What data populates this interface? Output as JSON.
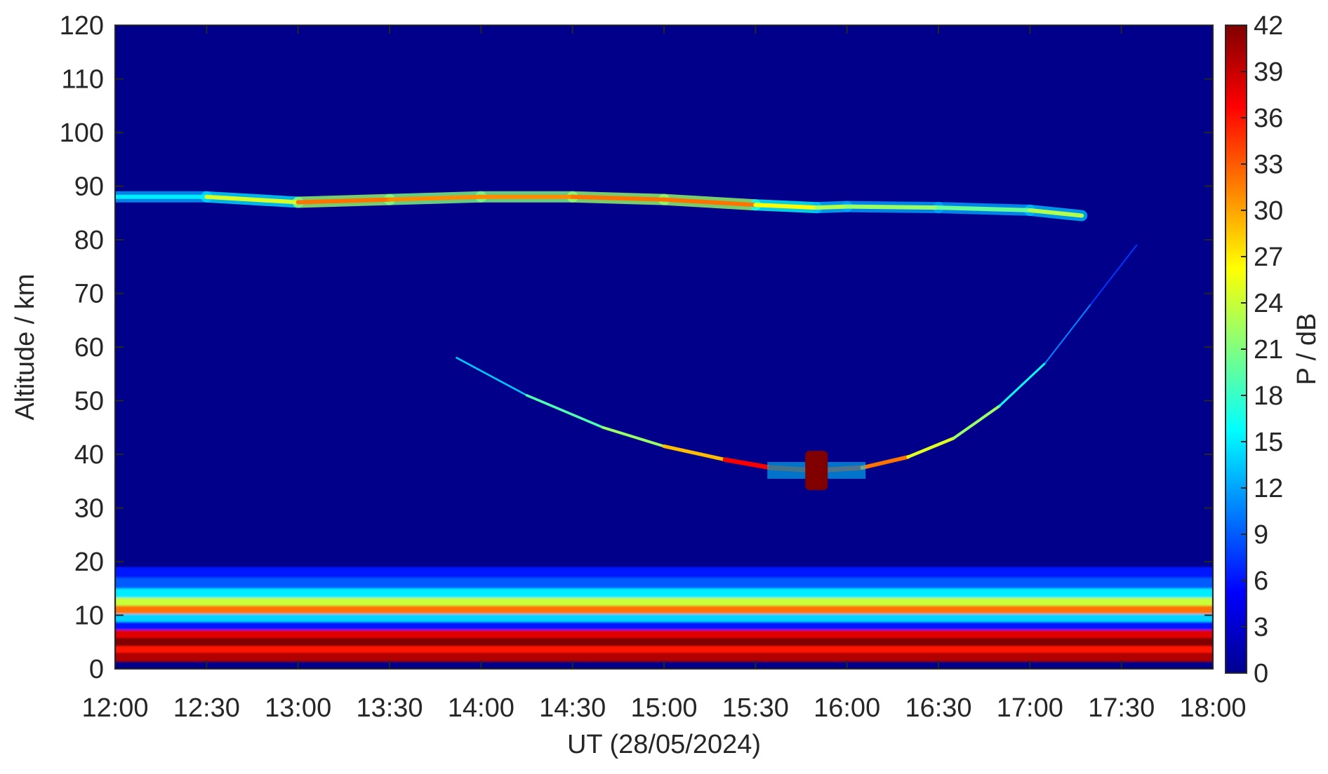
{
  "chart_data": {
    "type": "heatmap",
    "title": "",
    "xlabel": "UT (28/05/2024)",
    "ylabel": "Altitude / km",
    "colorbar_label": "P / dB",
    "colormap": "jet",
    "background_color": "#00008b",
    "x_ticks": [
      "12:00",
      "12:30",
      "13:00",
      "13:30",
      "14:00",
      "14:30",
      "15:00",
      "15:30",
      "16:00",
      "16:30",
      "17:00",
      "17:30",
      "18:00"
    ],
    "xlim": [
      "12:00",
      "18:00"
    ],
    "y_ticks": [
      0,
      10,
      20,
      30,
      40,
      50,
      60,
      70,
      80,
      90,
      100,
      110,
      120
    ],
    "ylim": [
      0,
      120
    ],
    "colorbar_ticks": [
      0,
      3,
      6,
      9,
      12,
      15,
      18,
      21,
      24,
      27,
      30,
      33,
      36,
      39,
      42
    ],
    "clim": [
      0,
      42
    ],
    "features": [
      {
        "name": "upper echo layer",
        "points": [
          {
            "x": "12:00",
            "y": 88,
            "p": 15
          },
          {
            "x": "12:30",
            "y": 88,
            "p": 15
          },
          {
            "x": "13:00",
            "y": 87,
            "p": 34
          },
          {
            "x": "13:30",
            "y": 87.5,
            "p": 30
          },
          {
            "x": "14:00",
            "y": 88,
            "p": 32
          },
          {
            "x": "14:30",
            "y": 88,
            "p": 30
          },
          {
            "x": "15:00",
            "y": 87.5,
            "p": 34
          },
          {
            "x": "15:30",
            "y": 86.5,
            "p": 30
          },
          {
            "x": "15:50",
            "y": 86,
            "p": 22
          },
          {
            "x": "16:00",
            "y": 86.2,
            "p": 24
          },
          {
            "x": "16:30",
            "y": 86,
            "p": 20
          },
          {
            "x": "17:00",
            "y": 85.5,
            "p": 20
          },
          {
            "x": "17:17",
            "y": 84.5,
            "p": 26
          }
        ]
      },
      {
        "name": "descending and ascending trace",
        "points": [
          {
            "x": "13:52",
            "y": 58,
            "p": 9
          },
          {
            "x": "14:15",
            "y": 51,
            "p": 18
          },
          {
            "x": "14:40",
            "y": 45,
            "p": 20
          },
          {
            "x": "15:00",
            "y": 41.5,
            "p": 24
          },
          {
            "x": "15:20",
            "y": 39,
            "p": 34
          },
          {
            "x": "15:35",
            "y": 37.5,
            "p": 40
          },
          {
            "x": "15:50",
            "y": 37,
            "p": 42
          },
          {
            "x": "16:05",
            "y": 37.5,
            "p": 38
          },
          {
            "x": "16:20",
            "y": 39.5,
            "p": 26
          },
          {
            "x": "16:35",
            "y": 43,
            "p": 24
          },
          {
            "x": "16:50",
            "y": 49,
            "p": 20
          },
          {
            "x": "17:05",
            "y": 57,
            "p": 12
          },
          {
            "x": "17:20",
            "y": 68,
            "p": 9
          },
          {
            "x": "17:35",
            "y": 79,
            "p": 6
          }
        ]
      },
      {
        "name": "near-surface strong echoes",
        "rows": [
          {
            "y": 18,
            "p": 6
          },
          {
            "y": 16,
            "p": 9
          },
          {
            "y": 14,
            "p": 15
          },
          {
            "y": 12.5,
            "p": 24
          },
          {
            "y": 11,
            "p": 32
          },
          {
            "y": 9.5,
            "p": 14
          },
          {
            "y": 8,
            "p": 6
          },
          {
            "y": 6.5,
            "p": 38
          },
          {
            "y": 5,
            "p": 42
          },
          {
            "y": 3.5,
            "p": 36
          },
          {
            "y": 2.5,
            "p": 40
          }
        ]
      }
    ]
  }
}
